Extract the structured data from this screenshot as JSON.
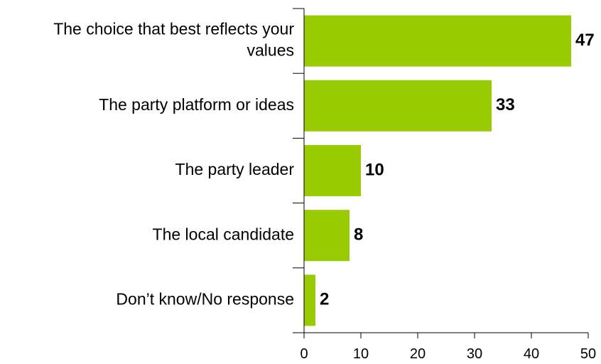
{
  "chart_data": {
    "type": "bar",
    "orientation": "horizontal",
    "categories": [
      [
        "The choice that best reflects your",
        "values"
      ],
      [
        "The party platform or ideas"
      ],
      [
        "The party leader"
      ],
      [
        "The local candidate"
      ],
      [
        "Don’t know/No response"
      ]
    ],
    "values": [
      47,
      33,
      10,
      8,
      2
    ],
    "xlim": [
      0,
      50
    ],
    "xticks": [
      0,
      10,
      20,
      30,
      40,
      50
    ],
    "title": "",
    "xlabel": "",
    "ylabel": "",
    "grid": false,
    "bar_color": "#99cc00"
  }
}
